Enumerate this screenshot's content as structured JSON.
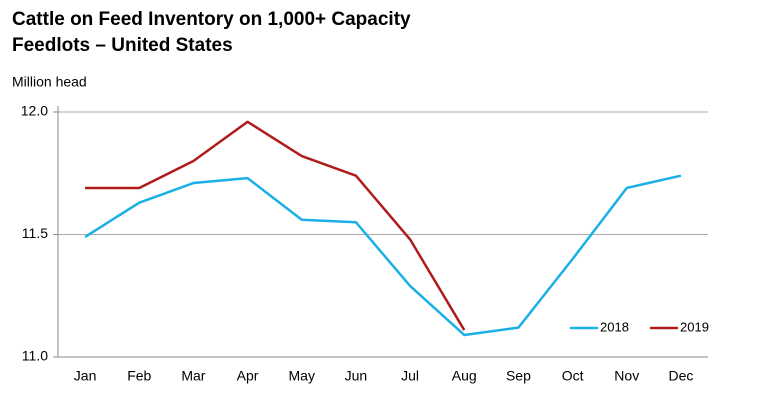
{
  "chart_data": {
    "type": "line",
    "title": [
      "Cattle on Feed Inventory on 1,000+ Capacity",
      "Feedlots – United States"
    ],
    "y_label": "Million head",
    "categories": [
      "Jan",
      "Feb",
      "Mar",
      "Apr",
      "May",
      "Jun",
      "Jul",
      "Aug",
      "Sep",
      "Oct",
      "Nov",
      "Dec"
    ],
    "series": [
      {
        "name": "2018",
        "color": "#1ab0e6",
        "values": [
          11.49,
          11.63,
          11.71,
          11.73,
          11.56,
          11.55,
          11.29,
          11.09,
          11.12,
          11.4,
          11.69,
          11.74
        ]
      },
      {
        "name": "2019",
        "color": "#b01c1c",
        "values": [
          11.69,
          11.69,
          11.8,
          11.96,
          11.82,
          11.74,
          11.48,
          11.11,
          null,
          null,
          null,
          null
        ]
      }
    ],
    "ylim": [
      11.0,
      12.0
    ],
    "yticks": [
      {
        "value": 11.0,
        "label": "11.0"
      },
      {
        "value": 11.5,
        "label": "11.5"
      },
      {
        "value": 12.0,
        "label": "12.0"
      }
    ],
    "grid": true,
    "legend": "lower right"
  }
}
